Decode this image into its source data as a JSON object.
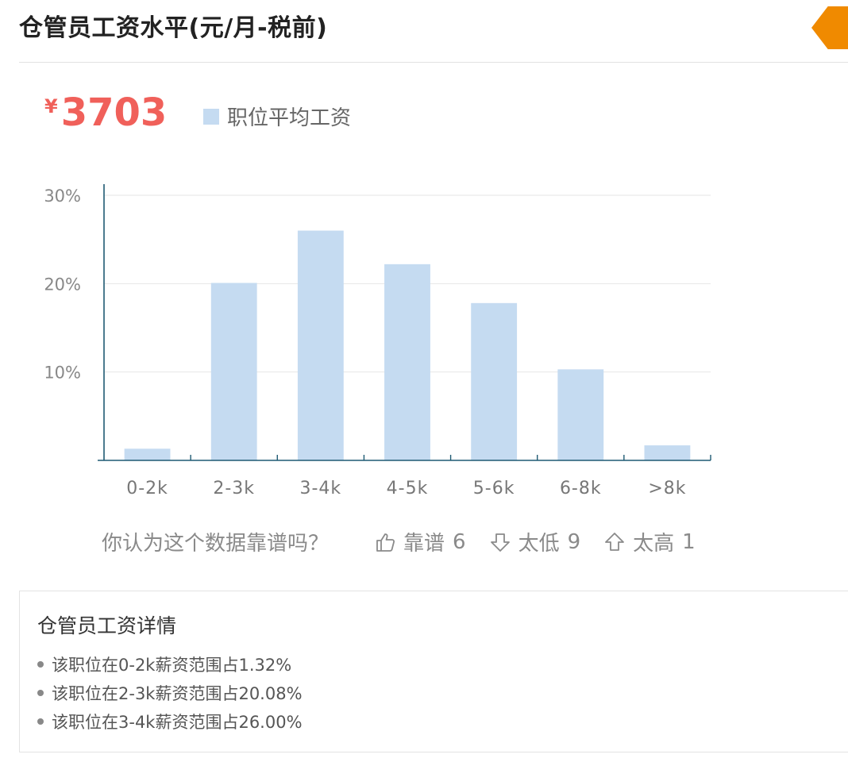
{
  "header": {
    "title": "仓管员工资水平(元/月-税前)"
  },
  "summary": {
    "currency_symbol": "¥",
    "average_salary": "3703",
    "legend_label": "职位平均工资"
  },
  "colors": {
    "bar": "#c5dbf1",
    "axis": "#1f5a73",
    "grid": "#e6e6e6",
    "accent": "#f0605a",
    "corner": "#f08a00"
  },
  "chart_data": {
    "type": "bar",
    "categories": [
      "0-2k",
      "2-3k",
      "3-4k",
      "4-5k",
      "5-6k",
      "6-8k",
      ">8k"
    ],
    "values": [
      1.32,
      20.08,
      26.0,
      22.2,
      17.8,
      10.3,
      1.7
    ],
    "series": [
      {
        "name": "职位平均工资",
        "values": [
          1.32,
          20.08,
          26.0,
          22.2,
          17.8,
          10.3,
          1.7
        ]
      }
    ],
    "y_ticks": [
      "10%",
      "20%",
      "30%"
    ],
    "ylim": [
      0,
      30
    ],
    "grid": true,
    "legend_position": "top"
  },
  "feedback": {
    "question": "你认为这个数据靠谱吗？",
    "reliable_label": "靠谱",
    "reliable_count": "6",
    "too_low_label": "太低",
    "too_low_count": "9",
    "too_high_label": "太高",
    "too_high_count": "1"
  },
  "details": {
    "title": "仓管员工资详情",
    "items": [
      "该职位在0-2k薪资范围占1.32%",
      "该职位在2-3k薪资范围占20.08%",
      "该职位在3-4k薪资范围占26.00%"
    ]
  }
}
